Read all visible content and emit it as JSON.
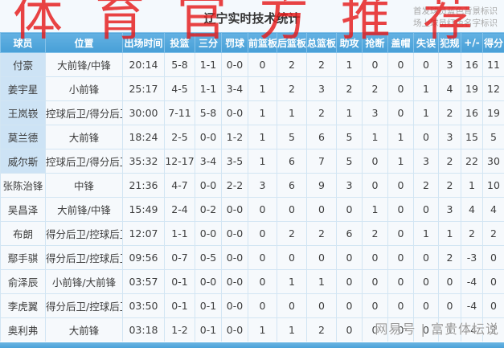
{
  "watermarks": {
    "top": "体育官方推荐",
    "bottom": "网易号 | 富贵体坛说"
  },
  "header": {
    "title": "辽宁实时技术统计",
    "legend_starters": "首发球员蓝色背景标识",
    "legend_oncourt": "场上球员红色名字标识"
  },
  "legend_colors": {
    "starter_background": "#cde3f5",
    "oncourt_name": "#c2403a",
    "header_blue": "#479fd7"
  },
  "table": {
    "columns": [
      "球员",
      "位置",
      "出场时间",
      "投篮",
      "三分",
      "罚球",
      "前篮板",
      "后篮板",
      "总篮板",
      "助攻",
      "抢断",
      "盖帽",
      "失误",
      "犯规",
      "+/-",
      "得分"
    ],
    "rows": [
      {
        "name": "付豪",
        "starter": true,
        "on_court": false,
        "cells": [
          "大前锋/中锋",
          "20:14",
          "5-8",
          "1-1",
          "0-0",
          "0",
          "2",
          "2",
          "1",
          "0",
          "0",
          "0",
          "3",
          "16",
          "11"
        ]
      },
      {
        "name": "姜宇星",
        "starter": true,
        "on_court": false,
        "cells": [
          "小前锋",
          "25:17",
          "4-5",
          "1-1",
          "3-4",
          "1",
          "2",
          "3",
          "2",
          "2",
          "0",
          "1",
          "4",
          "19",
          "12"
        ]
      },
      {
        "name": "王岚嵚",
        "starter": true,
        "on_court": true,
        "cells": [
          "控球后卫/得分后卫",
          "30:00",
          "7-11",
          "5-8",
          "0-0",
          "1",
          "1",
          "2",
          "1",
          "3",
          "0",
          "1",
          "2",
          "16",
          "19"
        ]
      },
      {
        "name": "莫兰德",
        "starter": true,
        "on_court": false,
        "cells": [
          "大前锋",
          "18:24",
          "2-5",
          "0-0",
          "1-2",
          "1",
          "5",
          "6",
          "5",
          "1",
          "1",
          "0",
          "3",
          "15",
          "5"
        ]
      },
      {
        "name": "威尔斯",
        "starter": true,
        "on_court": false,
        "cells": [
          "控球后卫/得分后卫",
          "35:32",
          "12-17",
          "3-4",
          "3-5",
          "1",
          "6",
          "7",
          "5",
          "0",
          "1",
          "3",
          "2",
          "22",
          "30"
        ]
      },
      {
        "name": "张陈治锋",
        "starter": false,
        "on_court": true,
        "cells": [
          "中锋",
          "21:36",
          "4-7",
          "0-0",
          "2-2",
          "3",
          "6",
          "9",
          "3",
          "0",
          "0",
          "2",
          "2",
          "1",
          "10"
        ]
      },
      {
        "name": "吴昌泽",
        "starter": false,
        "on_court": false,
        "cells": [
          "大前锋/中锋",
          "15:49",
          "2-4",
          "0-2",
          "0-0",
          "0",
          "0",
          "0",
          "0",
          "1",
          "0",
          "0",
          "3",
          "4",
          "4"
        ]
      },
      {
        "name": "布朗",
        "starter": false,
        "on_court": false,
        "cells": [
          "得分后卫/控球后卫",
          "12:07",
          "1-1",
          "0-0",
          "0-0",
          "0",
          "2",
          "2",
          "6",
          "2",
          "0",
          "1",
          "1",
          "2",
          "2"
        ]
      },
      {
        "name": "鄢手骐",
        "starter": false,
        "on_court": true,
        "cells": [
          "得分后卫/控球后卫",
          "09:56",
          "0-7",
          "0-5",
          "0-0",
          "0",
          "0",
          "0",
          "0",
          "0",
          "0",
          "0",
          "2",
          "-3",
          "0"
        ]
      },
      {
        "name": "俞泽辰",
        "starter": false,
        "on_court": true,
        "cells": [
          "小前锋/大前锋",
          "03:57",
          "0-1",
          "0-0",
          "0-0",
          "0",
          "1",
          "1",
          "0",
          "0",
          "0",
          "0",
          "0",
          "-4",
          "0"
        ]
      },
      {
        "name": "李虎翼",
        "starter": false,
        "on_court": true,
        "cells": [
          "得分后卫/控球后卫",
          "03:50",
          "0-1",
          "0-1",
          "0-0",
          "0",
          "0",
          "0",
          "0",
          "0",
          "0",
          "0",
          "0",
          "-4",
          "0"
        ]
      },
      {
        "name": "奥利弗",
        "starter": false,
        "on_court": false,
        "cells": [
          "大前锋",
          "03:18",
          "1-2",
          "0-1",
          "0-0",
          "1",
          "1",
          "2",
          "0",
          "0",
          "0",
          "0",
          "1",
          "-4",
          "2"
        ]
      }
    ]
  }
}
